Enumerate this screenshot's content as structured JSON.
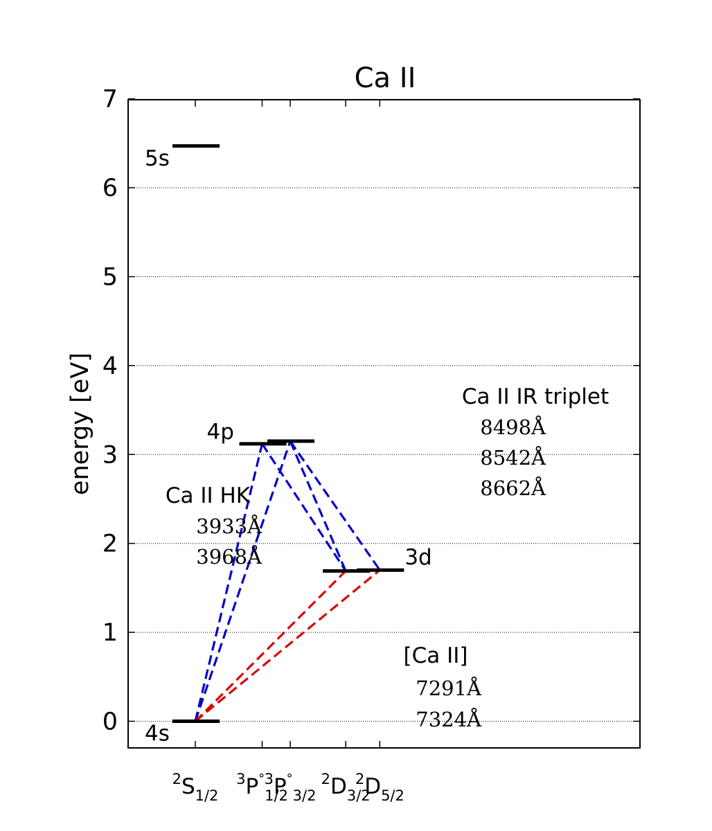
{
  "chart_data": {
    "type": "energy-level-diagram",
    "title": "Ca II",
    "ylabel": "energy [eV]",
    "ylim": [
      -0.3,
      7
    ],
    "yticks": [
      0,
      1,
      2,
      3,
      4,
      5,
      6,
      7
    ],
    "grid": "horizontal dotted",
    "xticks": [
      {
        "id": "s12",
        "label": "S",
        "sup": "2",
        "sub": "1/2",
        "x": 1.0
      },
      {
        "id": "p12",
        "label": "P",
        "sup": "3",
        "sub": "1/2",
        "circ": "°",
        "x": 2.0
      },
      {
        "id": "p32",
        "label": "P",
        "sup": "3",
        "sub": "3/2",
        "circ": "°",
        "x": 2.42
      },
      {
        "id": "d32",
        "label": "D",
        "sup": "2",
        "sub": "3/2",
        "x": 3.25
      },
      {
        "id": "d52",
        "label": "D",
        "sup": "2",
        "sub": "5/2",
        "x": 3.76
      }
    ],
    "levels": [
      {
        "id": "5s",
        "x": 1.0,
        "energy": 6.47,
        "label": "5s"
      },
      {
        "id": "4s",
        "x": 1.0,
        "energy": 0.0,
        "label": "4s"
      },
      {
        "id": "4p12",
        "x": 2.0,
        "energy": 3.12,
        "label": "4p"
      },
      {
        "id": "4p32",
        "x": 2.42,
        "energy": 3.15,
        "label": ""
      },
      {
        "id": "3d32",
        "x": 3.25,
        "energy": 1.69,
        "label": ""
      },
      {
        "id": "3d52",
        "x": 3.76,
        "energy": 1.7,
        "label": "3d"
      }
    ],
    "transitions": [
      {
        "from": "4s",
        "to": "4p12",
        "color": "blue"
      },
      {
        "from": "4s",
        "to": "4p32",
        "color": "blue"
      },
      {
        "from": "4p12",
        "to": "3d32",
        "color": "blue"
      },
      {
        "from": "4p32",
        "to": "3d32",
        "color": "blue"
      },
      {
        "from": "4p32",
        "to": "3d52",
        "color": "blue"
      },
      {
        "from": "4s",
        "to": "3d32",
        "color": "red"
      },
      {
        "from": "4s",
        "to": "3d52",
        "color": "red"
      }
    ],
    "annotations": {
      "hk": {
        "title": "Ca II  HK",
        "lines": [
          "3933Å",
          "3968Å"
        ]
      },
      "ir": {
        "title": "Ca II  IR triplet",
        "lines": [
          "8498Å",
          "8542Å",
          "8662Å"
        ]
      },
      "forbidden": {
        "title": "[Ca II]",
        "lines": [
          "7291Å",
          "7324Å"
        ]
      }
    }
  },
  "colors": {
    "blue": "#0000cc",
    "red": "#dd0000",
    "axis": "#000000",
    "grid": "#000000"
  }
}
